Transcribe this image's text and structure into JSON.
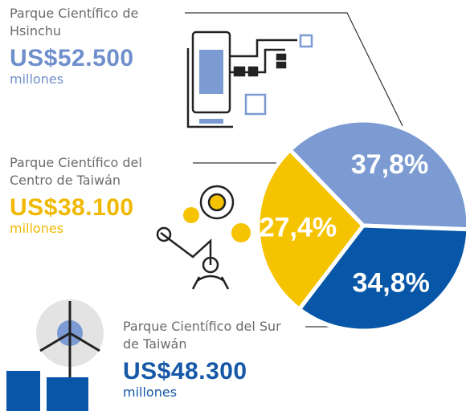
{
  "chart_data": {
    "type": "pie",
    "categories": [
      "Parque Científico de Hsinchu",
      "Parque Científico del Sur de Taiwán",
      "Parque Científico del Centro de Taiwán"
    ],
    "values": [
      37.8,
      34.8,
      27.4
    ],
    "value_labels": [
      "37,8%",
      "34,8%",
      "27,4%"
    ],
    "colors": [
      "#7b9bd2",
      "#0756a7",
      "#f5c300"
    ],
    "amounts": [
      "US$52.500",
      "US$48.300",
      "US$38.100"
    ],
    "units": [
      "millones",
      "millones",
      "millones"
    ]
  }
}
